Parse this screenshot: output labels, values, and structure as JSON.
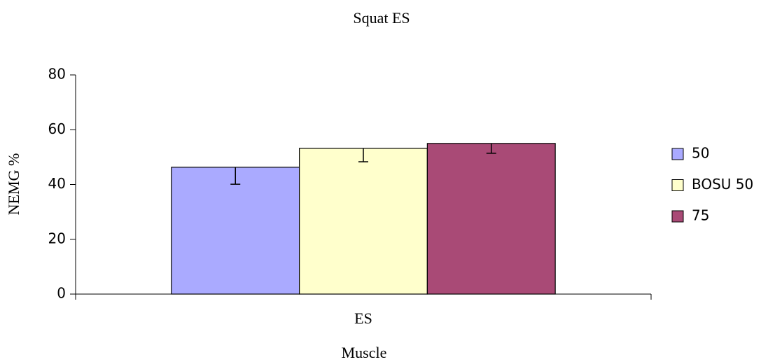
{
  "chart_data": {
    "type": "bar",
    "title": "Squat ES",
    "x_label": "Muscle",
    "y_label": "NEMG %",
    "categories": [
      "ES"
    ],
    "series": [
      {
        "name": "50",
        "color": "#aaaaff",
        "values": [
          46.3
        ],
        "errors": [
          6.2
        ]
      },
      {
        "name": "BOSU 50",
        "color": "#ffffcc",
        "values": [
          53.2
        ],
        "errors": [
          4.9
        ]
      },
      {
        "name": "75",
        "color": "#a94a76",
        "values": [
          55.0
        ],
        "errors": [
          3.6
        ]
      }
    ],
    "error_bars": "minus",
    "ylim": [
      0,
      80
    ],
    "yticks": [
      0,
      20,
      40,
      60,
      80
    ],
    "grid": false,
    "legend": "right"
  }
}
